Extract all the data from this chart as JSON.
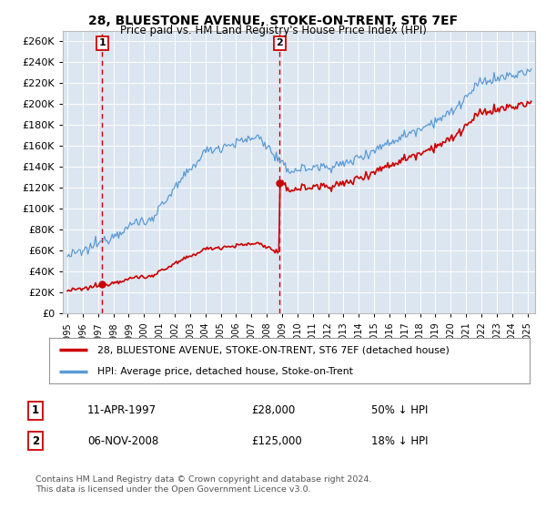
{
  "title": "28, BLUESTONE AVENUE, STOKE-ON-TRENT, ST6 7EF",
  "subtitle": "Price paid vs. HM Land Registry's House Price Index (HPI)",
  "ylabel_ticks": [
    "£0",
    "£20K",
    "£40K",
    "£60K",
    "£80K",
    "£100K",
    "£120K",
    "£140K",
    "£160K",
    "£180K",
    "£200K",
    "£220K",
    "£240K",
    "£260K"
  ],
  "ylim": [
    0,
    270000
  ],
  "xlim_start": 1994.7,
  "xlim_end": 2025.5,
  "purchase1_date": 1997.27,
  "purchase1_price": 28000,
  "purchase1_label": "1",
  "purchase2_date": 2008.85,
  "purchase2_price": 125000,
  "purchase2_label": "2",
  "legend_line1": "28, BLUESTONE AVENUE, STOKE-ON-TRENT, ST6 7EF (detached house)",
  "legend_line2": "HPI: Average price, detached house, Stoke-on-Trent",
  "table_row1_num": "1",
  "table_row1_date": "11-APR-1997",
  "table_row1_price": "£28,000",
  "table_row1_hpi": "50% ↓ HPI",
  "table_row2_num": "2",
  "table_row2_date": "06-NOV-2008",
  "table_row2_price": "£125,000",
  "table_row2_hpi": "18% ↓ HPI",
  "footnote1": "Contains HM Land Registry data © Crown copyright and database right 2024.",
  "footnote2": "This data is licensed under the Open Government Licence v3.0.",
  "line_color_red": "#cc0000",
  "line_color_blue": "#5b9bd5",
  "background_color": "#dce6f1",
  "plot_bg_color": "#dce6f1",
  "grid_color": "#ffffff",
  "dashed_line_color": "#cc0000",
  "shaded_bg": "#dce6f1"
}
